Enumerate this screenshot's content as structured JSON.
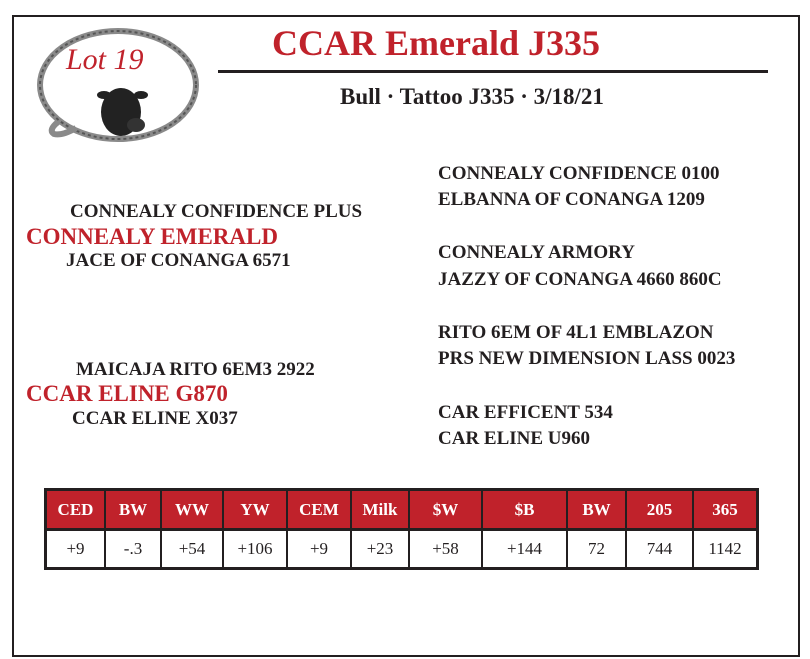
{
  "logo": {
    "text": "Lot 19",
    "icon": "bull-head-icon"
  },
  "header": {
    "title": "CCAR Emerald J335",
    "subtitle": "Bull  · Tattoo J335 · 3/18/21"
  },
  "pedigree": {
    "sire": {
      "name": "CONNEALY EMERALD",
      "sire": "CONNEALY CONFIDENCE PLUS",
      "dam": "JACE OF CONANGA 6571"
    },
    "dam": {
      "name": "CCAR ELINE G870",
      "sire": "MAICAJA RITO 6EM3 2922",
      "dam": "CCAR ELINE X037"
    },
    "grandparents": [
      [
        "CONNEALY CONFIDENCE 0100",
        "ELBANNA OF CONANGA 1209"
      ],
      [
        "CONNEALY ARMORY",
        "JAZZY OF CONANGA 4660 860C"
      ],
      [
        "RITO 6EM OF 4L1 EMBLAZON",
        "PRS NEW DIMENSION LASS 0023"
      ],
      [
        "CAR EFFICENT 534",
        "CAR ELINE U960"
      ]
    ]
  },
  "epd_table": {
    "headers": [
      "CED",
      "BW",
      "WW",
      "YW",
      "CEM",
      "Milk",
      "$W",
      "$B",
      "BW",
      "205",
      "365"
    ],
    "values": [
      "+9",
      "-.3",
      "+54",
      "+106",
      "+9",
      "+23",
      "+58",
      "+144",
      "72",
      "744",
      "1142"
    ]
  },
  "colors": {
    "accent": "#c0222b"
  }
}
